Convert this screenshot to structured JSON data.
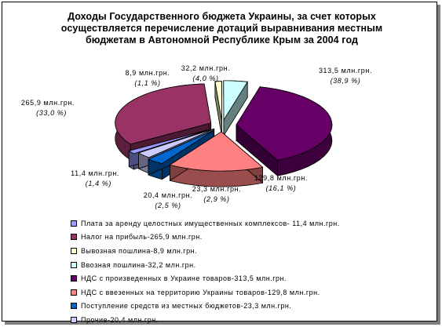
{
  "chart_data": {
    "type": "pie",
    "title": "Доходы Государственного бюджета Украины, за счет которых осуществляется перечисление дотаций выравнивания местным бюджетам в Автономной Республике Крым за 2004 год",
    "slices": [
      {
        "value": 11.4,
        "value_label": "11,4 млн.грн.",
        "percent_label": "(1,4 %)",
        "legend": "Плата за аренду целостных имущественных комплексов- 11,4 млн.грн.",
        "color": "#9999ff"
      },
      {
        "value": 265.9,
        "value_label": "265,9 млн.грн.",
        "percent_label": "(33,0 %)",
        "legend": "Налог на прибыль-265,9 млн.грн.",
        "color": "#993366"
      },
      {
        "value": 8.9,
        "value_label": "8,9 млн.грн.",
        "percent_label": "(1,1 %)",
        "legend": "Вывозная пошлина-8,9 млн.грн.",
        "color": "#ffffcc"
      },
      {
        "value": 32.2,
        "value_label": "32,2 млн.грн.",
        "percent_label": "(4,0 %)",
        "legend": "Ввозная пошлина-32,2 млн.грн.",
        "color": "#ccffff"
      },
      {
        "value": 313.5,
        "value_label": "313,5 млн.грн.",
        "percent_label": "(38,9 %)",
        "legend": "НДС с произведенных  в Украине товаров-313,5 млн.грн.",
        "color": "#660066"
      },
      {
        "value": 129.8,
        "value_label": "129,8 млн.грн.",
        "percent_label": "(16,1 %)",
        "legend": "НДС с ввезенных   на территорию Украины товаров-129,8 млн.грн.",
        "color": "#ff8080"
      },
      {
        "value": 23.3,
        "value_label": "23,3 млн.грн.",
        "percent_label": "(2,9 %)",
        "legend": "Поступление средств из местных бюджетов-23,3 млн.грн.",
        "color": "#0066cc"
      },
      {
        "value": 20.4,
        "value_label": "20,4 млн.грн.",
        "percent_label": "(2,5 %)",
        "legend": "Прочие-20,4 млн.грн.",
        "color": "#ccccff"
      }
    ],
    "legend_position": "bottom-left",
    "style": "3d-exploded-pie"
  }
}
